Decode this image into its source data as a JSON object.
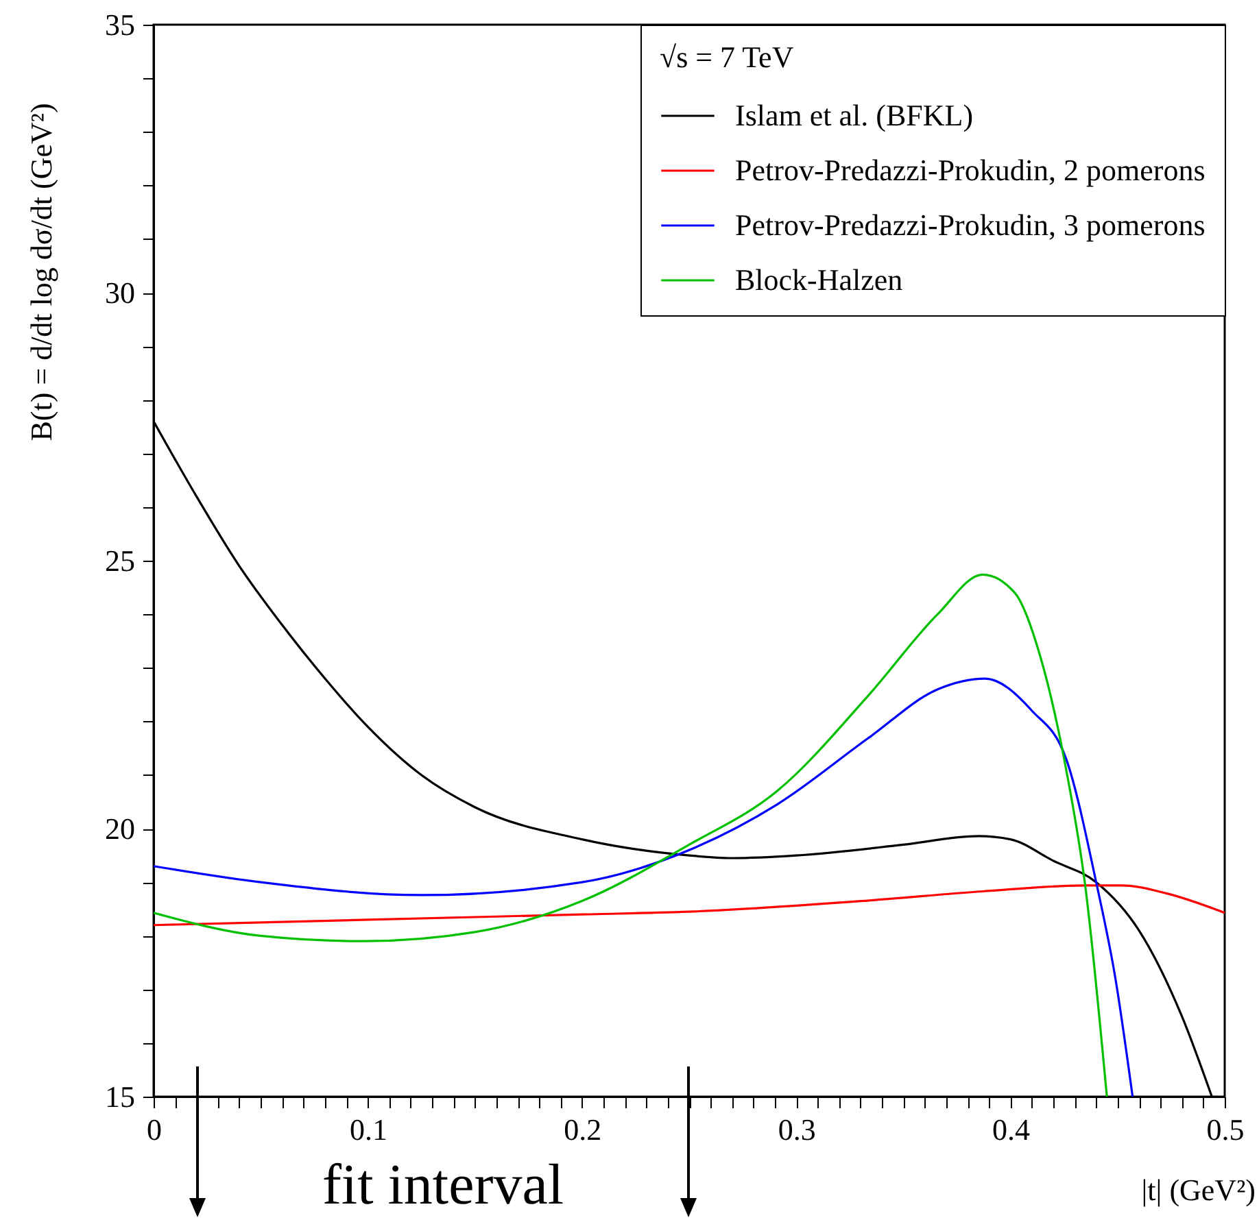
{
  "chart_data": {
    "type": "line",
    "xlabel": "|t|   (GeV²)",
    "ylabel": "B(t) = d/dt log dσ/dt   (GeV²)",
    "legend_title": "√s = 7 TeV",
    "legend": "top right",
    "xlim": [
      0,
      0.5
    ],
    "ylim": [
      15,
      35
    ],
    "xticks": [
      0,
      {
        "value": 0.01,
        "label": null
      },
      {
        "value": 0.02,
        "label": null
      },
      {
        "value": 0.03,
        "label": null
      },
      {
        "value": 0.04,
        "label": null
      },
      {
        "value": 0.05,
        "label": null
      },
      {
        "value": 0.06,
        "label": null
      },
      {
        "value": 0.07,
        "label": null
      },
      {
        "value": 0.08,
        "label": null
      },
      {
        "value": 0.09,
        "label": null
      },
      0.1,
      {
        "value": 0.11,
        "label": null
      },
      {
        "value": 0.12,
        "label": null
      },
      {
        "value": 0.13,
        "label": null
      },
      {
        "value": 0.14,
        "label": null
      },
      {
        "value": 0.15,
        "label": null
      },
      {
        "value": 0.16,
        "label": null
      },
      {
        "value": 0.17,
        "label": null
      },
      {
        "value": 0.18,
        "label": null
      },
      {
        "value": 0.19,
        "label": null
      },
      0.2,
      {
        "value": 0.21,
        "label": null
      },
      {
        "value": 0.22,
        "label": null
      },
      {
        "value": 0.23,
        "label": null
      },
      {
        "value": 0.24,
        "label": null
      },
      {
        "value": 0.25,
        "label": null
      },
      {
        "value": 0.26,
        "label": null
      },
      {
        "value": 0.27,
        "label": null
      },
      {
        "value": 0.28,
        "label": null
      },
      {
        "value": 0.29,
        "label": null
      },
      0.3,
      {
        "value": 0.31,
        "label": null
      },
      {
        "value": 0.32,
        "label": null
      },
      {
        "value": 0.33,
        "label": null
      },
      {
        "value": 0.34,
        "label": null
      },
      {
        "value": 0.35,
        "label": null
      },
      {
        "value": 0.36,
        "label": null
      },
      {
        "value": 0.37,
        "label": null
      },
      {
        "value": 0.38,
        "label": null
      },
      {
        "value": 0.39,
        "label": null
      },
      0.4,
      {
        "value": 0.41,
        "label": null
      },
      {
        "value": 0.42,
        "label": null
      },
      {
        "value": 0.43,
        "label": null
      },
      {
        "value": 0.44,
        "label": null
      },
      {
        "value": 0.45,
        "label": null
      },
      {
        "value": 0.46,
        "label": null
      },
      {
        "value": 0.47,
        "label": null
      },
      {
        "value": 0.48,
        "label": null
      },
      {
        "value": 0.49,
        "label": null
      },
      0.5
    ],
    "yticks": [
      15,
      {
        "value": 16,
        "label": null
      },
      {
        "value": 17,
        "label": null
      },
      {
        "value": 18,
        "label": null
      },
      {
        "value": 19,
        "label": null
      },
      20,
      {
        "value": 21,
        "label": null
      },
      {
        "value": 22,
        "label": null
      },
      {
        "value": 23,
        "label": null
      },
      {
        "value": 24,
        "label": null
      },
      25,
      {
        "value": 26,
        "label": null
      },
      {
        "value": 27,
        "label": null
      },
      {
        "value": 28,
        "label": null
      },
      {
        "value": 29,
        "label": null
      },
      30,
      {
        "value": 31,
        "label": null
      },
      {
        "value": 32,
        "label": null
      },
      {
        "value": 33,
        "label": null
      },
      {
        "value": 34,
        "label": null
      },
      35
    ],
    "annotations": [
      "fit interval"
    ],
    "series": [
      {
        "name": "Islam et al.  (BFKL)",
        "color": "#000000",
        "x": [
          0,
          0.02,
          0.04,
          0.06,
          0.08,
          0.1,
          0.125,
          0.15,
          0.2,
          0.25,
          0.27,
          0.3,
          0.35,
          0.385,
          0.4,
          0.42,
          0.44,
          0.46,
          0.48,
          0.494
        ],
        "values": [
          27.6,
          26.2,
          24.9,
          23.8,
          22.8,
          21.9,
          21.0,
          20.4,
          19.8,
          19.5,
          19.45,
          19.5,
          19.7,
          19.86,
          19.8,
          19.4,
          19.0,
          18.1,
          16.5,
          15.0
        ]
      },
      {
        "name": "Petrov-Predazzi-Prokudin, 2 pomerons",
        "color": "#ff0000",
        "x": [
          0,
          0.1,
          0.2,
          0.25,
          0.334,
          0.387,
          0.435,
          0.452,
          0.473,
          0.5
        ],
        "values": [
          18.2,
          18.3,
          18.4,
          18.45,
          18.66,
          18.83,
          18.94,
          18.94,
          18.79,
          18.43
        ]
      },
      {
        "name": "Petrov-Predazzi-Prokudin, 3 pomerons",
        "color": "#0000ff",
        "x": [
          0,
          0.05,
          0.125,
          0.2,
          0.25,
          0.291,
          0.334,
          0.366,
          0.388,
          0.41,
          0.426,
          0.44,
          0.449,
          0.457
        ],
        "values": [
          19.3,
          19.0,
          18.76,
          19.0,
          19.6,
          20.45,
          21.7,
          22.6,
          22.8,
          22.2,
          21.3,
          19.0,
          17.2,
          15.0
        ]
      },
      {
        "name": "Block-Halzen",
        "color": "#00c000",
        "x": [
          0,
          0.05,
          0.098,
          0.15,
          0.2,
          0.25,
          0.291,
          0.334,
          0.366,
          0.387,
          0.402,
          0.414,
          0.426,
          0.435,
          0.445
        ],
        "values": [
          18.43,
          18.0,
          17.9,
          18.07,
          18.65,
          19.7,
          20.7,
          22.5,
          24.0,
          24.74,
          24.4,
          23.2,
          21.1,
          18.9,
          15.0
        ]
      }
    ]
  }
}
